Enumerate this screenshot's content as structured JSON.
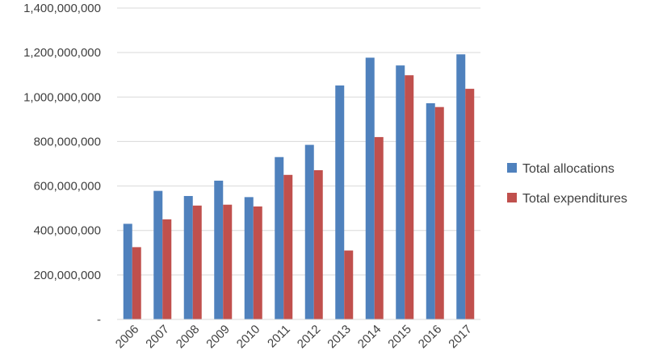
{
  "chart_data": {
    "type": "bar",
    "categories": [
      "2006",
      "2007",
      "2008",
      "2009",
      "2010",
      "2011",
      "2012",
      "2013",
      "2014",
      "2015",
      "2016",
      "2017"
    ],
    "series": [
      {
        "name": "Total allocations",
        "color": "#4F81BD",
        "values": [
          430000000,
          578000000,
          555000000,
          624000000,
          550000000,
          730000000,
          785000000,
          1052000000,
          1177000000,
          1142000000,
          972000000,
          1192000000
        ]
      },
      {
        "name": "Total expenditures",
        "color": "#C0504D",
        "values": [
          325000000,
          450000000,
          512000000,
          516000000,
          508000000,
          650000000,
          671000000,
          310000000,
          820000000,
          1098000000,
          955000000,
          1037000000
        ]
      }
    ],
    "y_ticks": [
      "-",
      "200,000,000",
      "400,000,000",
      "600,000,000",
      "800,000,000",
      "1,000,000,000",
      "1,200,000,000",
      "1,400,000,000"
    ],
    "ylim": [
      0,
      1400000000
    ],
    "grid": true,
    "legend_position": "right",
    "title": "",
    "xlabel": "",
    "ylabel": ""
  }
}
